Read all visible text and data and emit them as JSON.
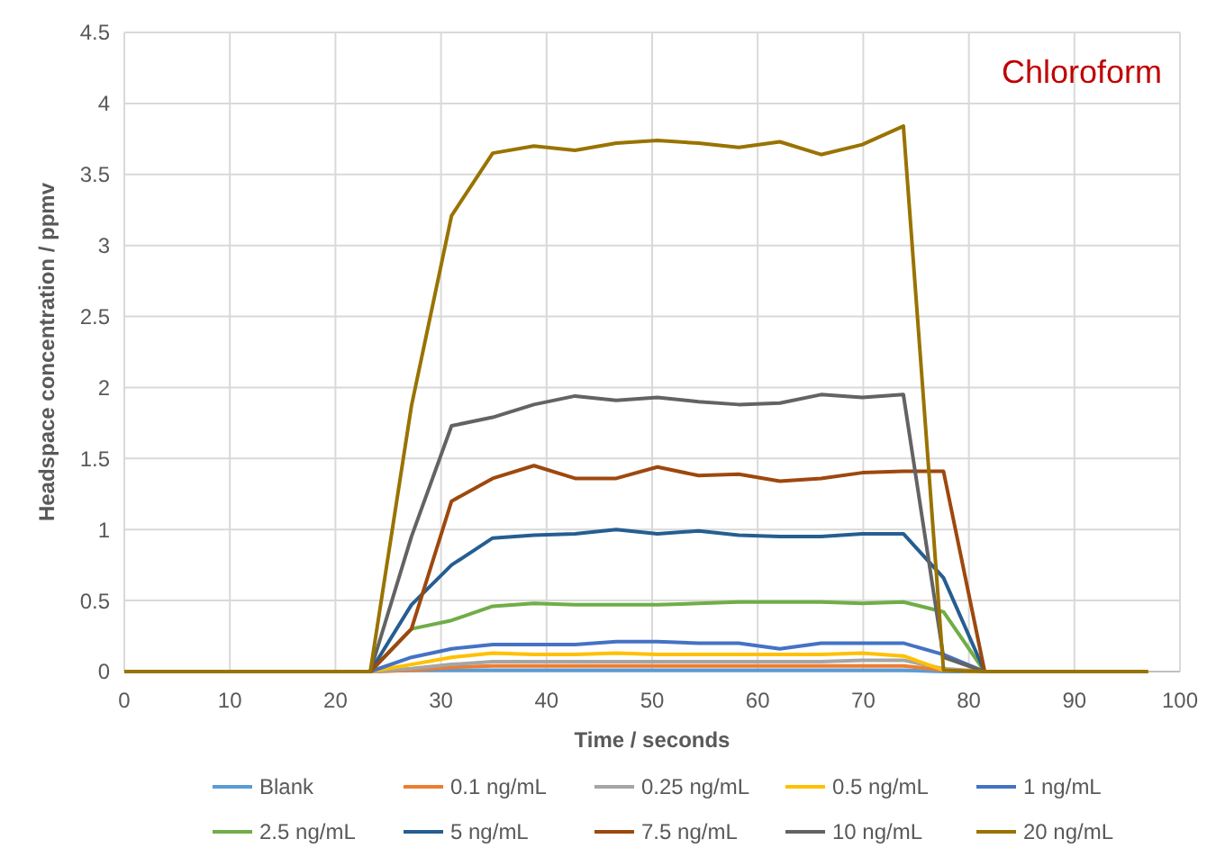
{
  "chart_data": {
    "type": "line",
    "annotations": [
      "Chloroform"
    ],
    "xlabel": "Time / seconds",
    "ylabel": "Headspace concentration / ppmv",
    "xlim": [
      0,
      100
    ],
    "xticks": [
      0,
      10,
      20,
      30,
      40,
      50,
      60,
      70,
      80,
      90,
      100
    ],
    "ylim": [
      0,
      4.5
    ],
    "yticks": [
      0,
      0.5,
      1,
      1.5,
      2,
      2.5,
      3,
      3.5,
      4,
      4.5
    ],
    "grid": true,
    "legend": "bottom",
    "marker": "none",
    "line_style": "solid",
    "x": [
      0,
      3.9,
      7.7,
      11.6,
      15.5,
      19.4,
      23.3,
      27.2,
      31,
      34.9,
      38.8,
      42.7,
      46.6,
      50.5,
      54.4,
      58.2,
      62.1,
      66,
      69.9,
      73.8,
      77.6,
      81.5,
      85.4,
      89.3,
      93.2,
      97
    ],
    "series": [
      {
        "name": "Blank",
        "color": "#5b9bd5",
        "values": [
          null,
          null,
          null,
          null,
          null,
          0,
          0,
          0.01,
          0.01,
          0.01,
          0.01,
          0.01,
          0.01,
          0.01,
          0.01,
          0.01,
          0.01,
          0.01,
          0.01,
          0.01,
          0,
          0,
          null,
          null,
          null,
          null
        ]
      },
      {
        "name": "0.1 ng/mL",
        "color": "#ed7d31",
        "values": [
          null,
          null,
          null,
          null,
          null,
          0,
          0,
          0.01,
          0.03,
          0.04,
          0.04,
          0.04,
          0.04,
          0.04,
          0.04,
          0.04,
          0.04,
          0.04,
          0.04,
          0.04,
          0.01,
          0,
          null,
          null,
          null,
          null
        ]
      },
      {
        "name": "0.25 ng/mL",
        "color": "#a5a5a5",
        "values": [
          null,
          null,
          null,
          null,
          null,
          0,
          0,
          0.02,
          0.05,
          0.07,
          0.07,
          0.07,
          0.07,
          0.07,
          0.07,
          0.07,
          0.07,
          0.07,
          0.08,
          0.08,
          0.02,
          0,
          null,
          null,
          null,
          null
        ]
      },
      {
        "name": "0.5 ng/mL",
        "color": "#ffc000",
        "values": [
          null,
          null,
          null,
          null,
          null,
          0,
          0,
          0.05,
          0.1,
          0.13,
          0.12,
          0.12,
          0.13,
          0.12,
          0.12,
          0.12,
          0.12,
          0.12,
          0.13,
          0.11,
          0.01,
          0,
          null,
          null,
          null,
          null
        ]
      },
      {
        "name": "1 ng/mL",
        "color": "#4472c4",
        "values": [
          null,
          null,
          null,
          null,
          null,
          0,
          0,
          0.1,
          0.16,
          0.19,
          0.19,
          0.19,
          0.21,
          0.21,
          0.2,
          0.2,
          0.16,
          0.2,
          0.2,
          0.2,
          0.12,
          0,
          null,
          null,
          null,
          null
        ]
      },
      {
        "name": "2.5 ng/mL",
        "color": "#70ad47",
        "values": [
          null,
          null,
          null,
          null,
          null,
          0,
          0,
          0.3,
          0.36,
          0.46,
          0.48,
          0.47,
          0.47,
          0.47,
          0.48,
          0.49,
          0.49,
          0.49,
          0.48,
          0.49,
          0.42,
          0,
          null,
          null,
          null,
          null
        ]
      },
      {
        "name": "5 ng/mL",
        "color": "#255e91",
        "values": [
          null,
          null,
          null,
          null,
          null,
          0,
          0,
          0.47,
          0.75,
          0.94,
          0.96,
          0.97,
          1.0,
          0.97,
          0.99,
          0.96,
          0.95,
          0.95,
          0.97,
          0.97,
          0.66,
          0,
          null,
          null,
          null,
          null
        ]
      },
      {
        "name": "7.5 ng/mL",
        "color": "#9e480e",
        "values": [
          null,
          null,
          null,
          null,
          null,
          0,
          0,
          0.3,
          1.2,
          1.36,
          1.45,
          1.36,
          1.36,
          1.44,
          1.38,
          1.39,
          1.34,
          1.36,
          1.4,
          1.41,
          1.41,
          0,
          null,
          null,
          null,
          null
        ]
      },
      {
        "name": "10 ng/mL",
        "color": "#636363",
        "values": [
          null,
          null,
          null,
          null,
          null,
          0,
          0,
          0.95,
          1.73,
          1.79,
          1.88,
          1.94,
          1.91,
          1.93,
          1.9,
          1.88,
          1.89,
          1.95,
          1.93,
          1.95,
          0.1,
          0,
          null,
          null,
          null,
          null
        ]
      },
      {
        "name": "20 ng/mL",
        "color": "#997300",
        "values": [
          0,
          0,
          0,
          0,
          0,
          0,
          0,
          1.87,
          3.21,
          3.65,
          3.7,
          3.67,
          3.72,
          3.74,
          3.72,
          3.69,
          3.73,
          3.64,
          3.71,
          3.84,
          0.01,
          0,
          0,
          0,
          0,
          0
        ]
      }
    ]
  }
}
